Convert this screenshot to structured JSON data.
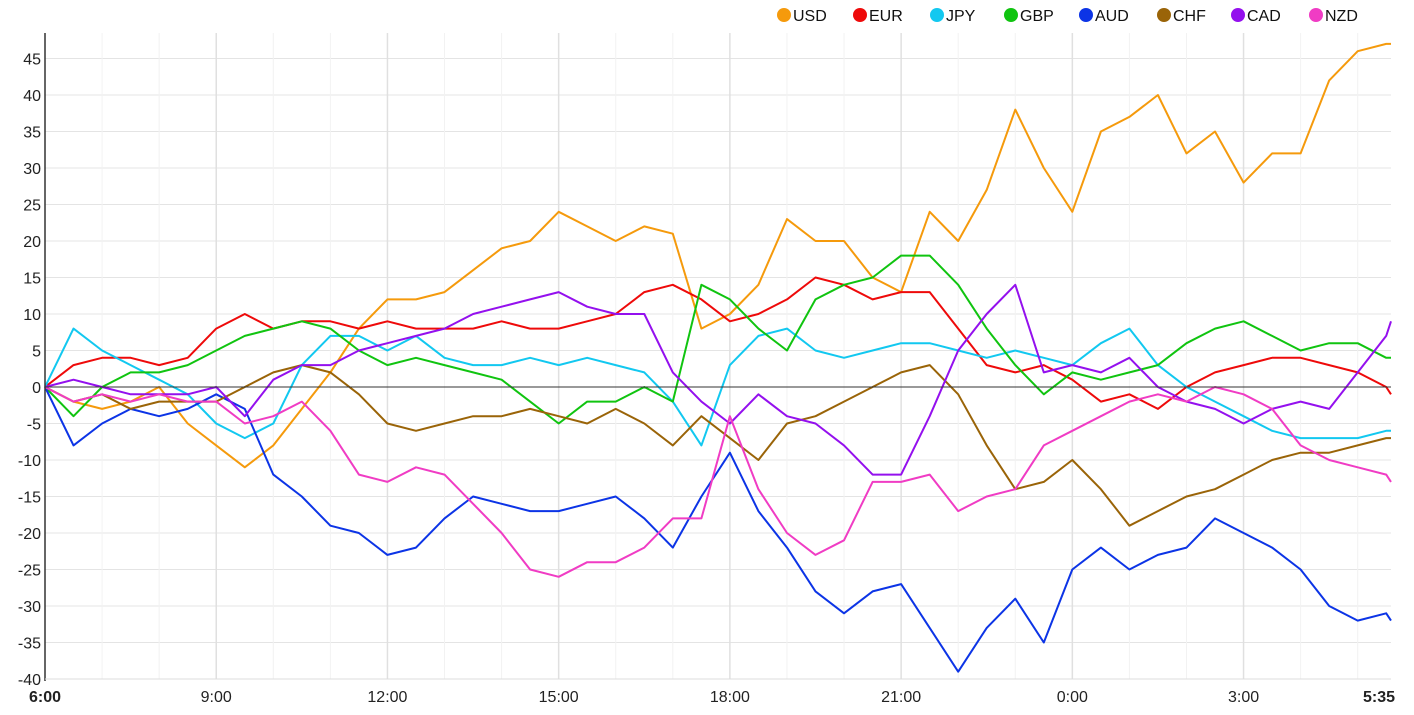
{
  "chart_data": {
    "type": "line",
    "title": "",
    "xlabel": "",
    "ylabel": "",
    "ylim": [
      -40,
      48
    ],
    "yticks": [
      45,
      40,
      35,
      30,
      25,
      20,
      15,
      10,
      5,
      0,
      -5,
      -10,
      -15,
      -20,
      -25,
      -30,
      -35,
      -40
    ],
    "xlim_minutes": [
      0,
      1415
    ],
    "xticks": [
      {
        "label": "6:00",
        "minute": 0,
        "bold": true
      },
      {
        "label": "9:00",
        "minute": 180
      },
      {
        "label": "12:00",
        "minute": 360
      },
      {
        "label": "15:00",
        "minute": 540
      },
      {
        "label": "18:00",
        "minute": 720
      },
      {
        "label": "21:00",
        "minute": 900
      },
      {
        "label": "0:00",
        "minute": 1080
      },
      {
        "label": "3:00",
        "minute": 1260
      },
      {
        "label": "5:35",
        "minute": 1415,
        "bold": true
      }
    ],
    "grid": true,
    "legend_placement": "top-right",
    "x_minutes": [
      0,
      30,
      60,
      90,
      120,
      150,
      180,
      210,
      240,
      270,
      300,
      330,
      360,
      390,
      420,
      450,
      480,
      510,
      540,
      570,
      600,
      630,
      660,
      690,
      720,
      750,
      780,
      810,
      840,
      870,
      900,
      930,
      960,
      990,
      1020,
      1050,
      1080,
      1110,
      1140,
      1170,
      1200,
      1230,
      1260,
      1290,
      1320,
      1350,
      1380,
      1410,
      1415
    ],
    "series": [
      {
        "name": "USD",
        "color": "#f59a0c",
        "values": [
          0,
          -2,
          -3,
          -2,
          0,
          -5,
          -8,
          -11,
          -8,
          -3,
          2,
          8,
          12,
          12,
          13,
          16,
          19,
          20,
          24,
          22,
          20,
          22,
          21,
          8,
          10,
          14,
          23,
          20,
          20,
          15,
          13,
          24,
          20,
          27,
          38,
          30,
          24,
          35,
          37,
          40,
          32,
          35,
          28,
          32,
          32,
          42,
          46,
          47,
          47
        ]
      },
      {
        "name": "EUR",
        "color": "#ee0a0a",
        "values": [
          0,
          3,
          4,
          4,
          3,
          4,
          8,
          10,
          8,
          9,
          9,
          8,
          9,
          8,
          8,
          8,
          9,
          8,
          8,
          9,
          10,
          13,
          14,
          12,
          9,
          10,
          12,
          15,
          14,
          12,
          13,
          13,
          8,
          3,
          2,
          3,
          1,
          -2,
          -1,
          -3,
          0,
          2,
          3,
          4,
          4,
          3,
          2,
          0,
          -1
        ]
      },
      {
        "name": "JPY",
        "color": "#12c8f0",
        "values": [
          0,
          8,
          5,
          3,
          1,
          -1,
          -5,
          -7,
          -5,
          3,
          7,
          7,
          5,
          7,
          4,
          3,
          3,
          4,
          3,
          4,
          3,
          2,
          -2,
          -8,
          3,
          7,
          8,
          5,
          4,
          5,
          6,
          6,
          5,
          4,
          5,
          4,
          3,
          6,
          8,
          3,
          0,
          -2,
          -4,
          -6,
          -7,
          -7,
          -7,
          -6,
          -6
        ]
      },
      {
        "name": "GBP",
        "color": "#10c410",
        "values": [
          0,
          -4,
          0,
          2,
          2,
          3,
          5,
          7,
          8,
          9,
          8,
          5,
          3,
          4,
          3,
          2,
          1,
          -2,
          -5,
          -2,
          -2,
          0,
          -2,
          14,
          12,
          8,
          5,
          12,
          14,
          15,
          18,
          18,
          14,
          8,
          3,
          -1,
          2,
          1,
          2,
          3,
          6,
          8,
          9,
          7,
          5,
          6,
          6,
          4,
          4
        ]
      },
      {
        "name": "AUD",
        "color": "#0c34e6",
        "values": [
          0,
          -8,
          -5,
          -3,
          -4,
          -3,
          -1,
          -3,
          -12,
          -15,
          -19,
          -20,
          -23,
          -22,
          -18,
          -15,
          -16,
          -17,
          -17,
          -16,
          -15,
          -18,
          -22,
          -15,
          -9,
          -17,
          -22,
          -28,
          -31,
          -28,
          -27,
          -33,
          -39,
          -33,
          -29,
          -35,
          -25,
          -22,
          -25,
          -23,
          -22,
          -18,
          -20,
          -22,
          -25,
          -30,
          -32,
          -31,
          -32
        ]
      },
      {
        "name": "CHF",
        "color": "#9a6408",
        "values": [
          0,
          -2,
          -1,
          -3,
          -2,
          -2,
          -2,
          0,
          2,
          3,
          2,
          -1,
          -5,
          -6,
          -5,
          -4,
          -4,
          -3,
          -4,
          -5,
          -3,
          -5,
          -8,
          -4,
          -7,
          -10,
          -5,
          -4,
          -2,
          0,
          2,
          3,
          -1,
          -8,
          -14,
          -13,
          -10,
          -14,
          -19,
          -17,
          -15,
          -14,
          -12,
          -10,
          -9,
          -9,
          -8,
          -7,
          -7
        ]
      },
      {
        "name": "CAD",
        "color": "#9410ee",
        "values": [
          0,
          1,
          0,
          -1,
          -1,
          -1,
          0,
          -4,
          1,
          3,
          3,
          5,
          6,
          7,
          8,
          10,
          11,
          12,
          13,
          11,
          10,
          10,
          2,
          -2,
          -5,
          -1,
          -4,
          -5,
          -8,
          -12,
          -12,
          -4,
          5,
          10,
          14,
          2,
          3,
          2,
          4,
          0,
          -2,
          -3,
          -5,
          -3,
          -2,
          -3,
          2,
          7,
          9
        ]
      },
      {
        "name": "NZD",
        "color": "#f03cc4",
        "values": [
          0,
          -2,
          -1,
          -2,
          -1,
          -2,
          -2,
          -5,
          -4,
          -2,
          -6,
          -12,
          -13,
          -11,
          -12,
          -16,
          -20,
          -25,
          -26,
          -24,
          -24,
          -22,
          -18,
          -18,
          -4,
          -14,
          -20,
          -23,
          -21,
          -13,
          -13,
          -12,
          -17,
          -15,
          -14,
          -8,
          -6,
          -4,
          -2,
          -1,
          -2,
          0,
          -1,
          -3,
          -8,
          -10,
          -11,
          -12,
          -13
        ]
      }
    ]
  }
}
